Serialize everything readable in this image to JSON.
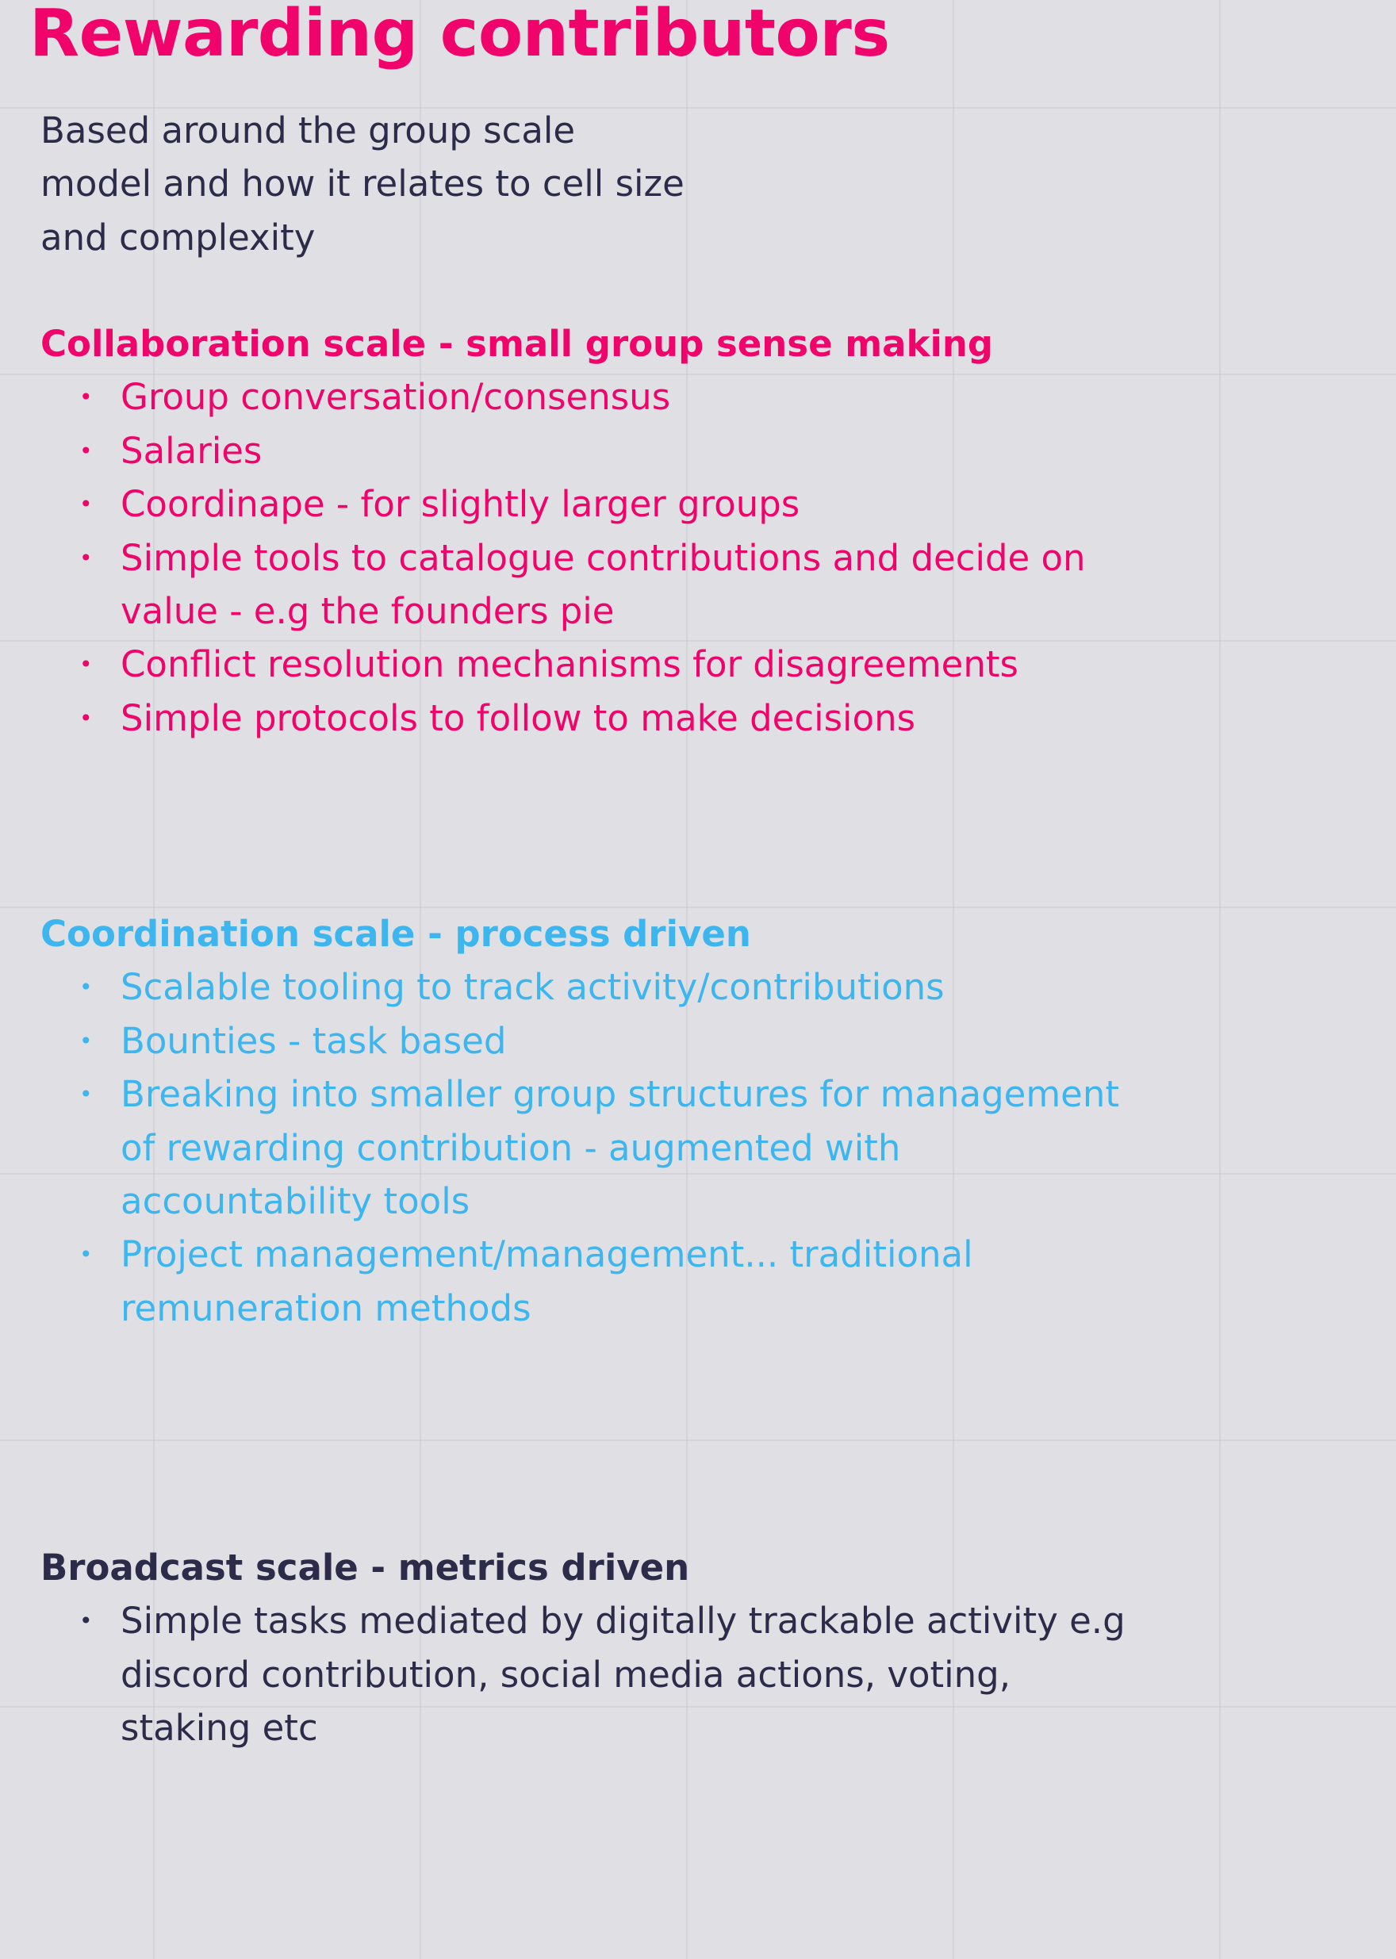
{
  "page": {
    "title": "Rewarding contributors",
    "intro": "Based around the group scale model and how it relates to cell size and complexity"
  },
  "colors": {
    "background": "#e0e0e4",
    "accent_pink": "#f0046c",
    "accent_blue": "#3db5ef",
    "text_dark": "#2d2b4a"
  },
  "sections": {
    "collaboration": {
      "heading": "Collaboration scale - small group sense making",
      "items": [
        "Group conversation/consensus",
        "Salaries",
        "Coordinape - for slightly larger groups",
        "Simple tools to catalogue contributions and decide on value - e.g the founders pie",
        "Conflict resolution mechanisms for disagreements",
        "Simple protocols to follow to make decisions"
      ]
    },
    "coordination": {
      "heading": "Coordination scale - process driven",
      "items": [
        "Scalable tooling to track activity/contributions",
        "Bounties - task based",
        "Breaking into smaller group structures for management of rewarding contribution - augmented with accountability tools",
        "Project management/management... traditional remuneration methods"
      ]
    },
    "broadcast": {
      "heading": "Broadcast scale - metrics driven",
      "items": [
        "Simple tasks mediated by digitally trackable activity e.g discord contribution, social media actions, voting, staking etc"
      ]
    }
  }
}
